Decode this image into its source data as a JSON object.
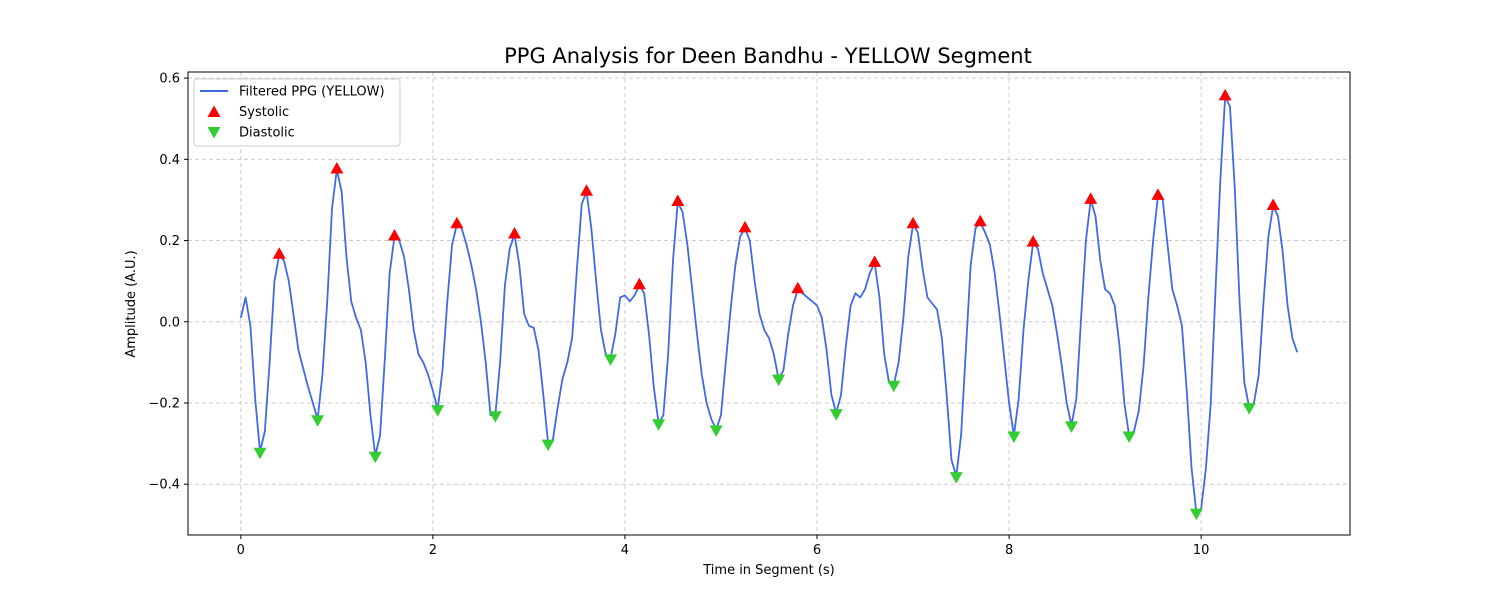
{
  "chart_data": {
    "type": "line",
    "title": "PPG Analysis for Deen Bandhu - YELLOW Segment",
    "xlabel": "Time in Segment (s)",
    "ylabel": "Amplitude (A.U.)",
    "xlim": [
      -0.55,
      11.55
    ],
    "ylim": [
      -0.525,
      0.615
    ],
    "xticks": [
      0,
      2,
      4,
      6,
      8,
      10
    ],
    "yticks": [
      -0.4,
      -0.2,
      0.0,
      0.2,
      0.4,
      0.6
    ],
    "xtick_labels": [
      "0",
      "2",
      "4",
      "6",
      "8",
      "10"
    ],
    "ytick_labels": [
      "−0.4",
      "−0.2",
      "0.0",
      "0.2",
      "0.4",
      "0.6"
    ],
    "grid": true,
    "legend_position": "upper-left",
    "series": [
      {
        "name": "Filtered PPG (YELLOW)",
        "kind": "line",
        "color": "#4169e1",
        "points": [
          [
            0.0,
            0.01
          ],
          [
            0.05,
            0.06
          ],
          [
            0.1,
            -0.01
          ],
          [
            0.15,
            -0.19
          ],
          [
            0.2,
            -0.32
          ],
          [
            0.25,
            -0.27
          ],
          [
            0.3,
            -0.1
          ],
          [
            0.35,
            0.1
          ],
          [
            0.4,
            0.165
          ],
          [
            0.45,
            0.15
          ],
          [
            0.5,
            0.1
          ],
          [
            0.6,
            -0.07
          ],
          [
            0.7,
            -0.16
          ],
          [
            0.8,
            -0.24
          ],
          [
            0.85,
            -0.13
          ],
          [
            0.9,
            0.05
          ],
          [
            0.95,
            0.28
          ],
          [
            1.0,
            0.375
          ],
          [
            1.05,
            0.32
          ],
          [
            1.1,
            0.16
          ],
          [
            1.15,
            0.05
          ],
          [
            1.2,
            0.01
          ],
          [
            1.25,
            -0.02
          ],
          [
            1.3,
            -0.1
          ],
          [
            1.35,
            -0.23
          ],
          [
            1.4,
            -0.33
          ],
          [
            1.45,
            -0.28
          ],
          [
            1.5,
            -0.09
          ],
          [
            1.55,
            0.12
          ],
          [
            1.6,
            0.21
          ],
          [
            1.65,
            0.2
          ],
          [
            1.7,
            0.16
          ],
          [
            1.75,
            0.08
          ],
          [
            1.8,
            -0.02
          ],
          [
            1.85,
            -0.08
          ],
          [
            1.9,
            -0.1
          ],
          [
            1.95,
            -0.13
          ],
          [
            2.0,
            -0.17
          ],
          [
            2.05,
            -0.215
          ],
          [
            2.1,
            -0.12
          ],
          [
            2.15,
            0.05
          ],
          [
            2.2,
            0.19
          ],
          [
            2.25,
            0.24
          ],
          [
            2.3,
            0.23
          ],
          [
            2.35,
            0.19
          ],
          [
            2.4,
            0.14
          ],
          [
            2.45,
            0.08
          ],
          [
            2.5,
            0.0
          ],
          [
            2.55,
            -0.1
          ],
          [
            2.6,
            -0.23
          ],
          [
            2.65,
            -0.23
          ],
          [
            2.7,
            -0.1
          ],
          [
            2.75,
            0.09
          ],
          [
            2.8,
            0.18
          ],
          [
            2.85,
            0.215
          ],
          [
            2.9,
            0.14
          ],
          [
            2.95,
            0.02
          ],
          [
            3.0,
            -0.01
          ],
          [
            3.05,
            -0.015
          ],
          [
            3.1,
            -0.07
          ],
          [
            3.15,
            -0.18
          ],
          [
            3.2,
            -0.3
          ],
          [
            3.25,
            -0.29
          ],
          [
            3.3,
            -0.21
          ],
          [
            3.35,
            -0.14
          ],
          [
            3.4,
            -0.1
          ],
          [
            3.45,
            -0.04
          ],
          [
            3.5,
            0.13
          ],
          [
            3.55,
            0.29
          ],
          [
            3.6,
            0.32
          ],
          [
            3.65,
            0.23
          ],
          [
            3.7,
            0.1
          ],
          [
            3.75,
            -0.02
          ],
          [
            3.8,
            -0.08
          ],
          [
            3.85,
            -0.09
          ],
          [
            3.9,
            -0.03
          ],
          [
            3.95,
            0.06
          ],
          [
            4.0,
            0.065
          ],
          [
            4.05,
            0.05
          ],
          [
            4.1,
            0.065
          ],
          [
            4.15,
            0.09
          ],
          [
            4.2,
            0.07
          ],
          [
            4.25,
            -0.03
          ],
          [
            4.3,
            -0.16
          ],
          [
            4.35,
            -0.25
          ],
          [
            4.4,
            -0.23
          ],
          [
            4.45,
            -0.08
          ],
          [
            4.5,
            0.15
          ],
          [
            4.55,
            0.295
          ],
          [
            4.6,
            0.27
          ],
          [
            4.65,
            0.19
          ],
          [
            4.7,
            0.08
          ],
          [
            4.75,
            -0.03
          ],
          [
            4.8,
            -0.13
          ],
          [
            4.85,
            -0.2
          ],
          [
            4.9,
            -0.24
          ],
          [
            4.95,
            -0.265
          ],
          [
            5.0,
            -0.23
          ],
          [
            5.05,
            -0.1
          ],
          [
            5.1,
            0.03
          ],
          [
            5.15,
            0.14
          ],
          [
            5.2,
            0.21
          ],
          [
            5.25,
            0.23
          ],
          [
            5.3,
            0.2
          ],
          [
            5.35,
            0.1
          ],
          [
            5.4,
            0.02
          ],
          [
            5.45,
            -0.02
          ],
          [
            5.5,
            -0.04
          ],
          [
            5.55,
            -0.08
          ],
          [
            5.6,
            -0.14
          ],
          [
            5.65,
            -0.12
          ],
          [
            5.7,
            -0.03
          ],
          [
            5.75,
            0.04
          ],
          [
            5.8,
            0.08
          ],
          [
            5.85,
            0.07
          ],
          [
            5.9,
            0.06
          ],
          [
            5.95,
            0.05
          ],
          [
            6.0,
            0.04
          ],
          [
            6.05,
            0.01
          ],
          [
            6.1,
            -0.07
          ],
          [
            6.15,
            -0.18
          ],
          [
            6.2,
            -0.225
          ],
          [
            6.25,
            -0.18
          ],
          [
            6.3,
            -0.06
          ],
          [
            6.35,
            0.04
          ],
          [
            6.4,
            0.07
          ],
          [
            6.45,
            0.06
          ],
          [
            6.5,
            0.08
          ],
          [
            6.55,
            0.12
          ],
          [
            6.6,
            0.145
          ],
          [
            6.65,
            0.06
          ],
          [
            6.7,
            -0.08
          ],
          [
            6.75,
            -0.15
          ],
          [
            6.8,
            -0.155
          ],
          [
            6.85,
            -0.1
          ],
          [
            6.9,
            0.01
          ],
          [
            6.95,
            0.16
          ],
          [
            7.0,
            0.24
          ],
          [
            7.05,
            0.22
          ],
          [
            7.1,
            0.13
          ],
          [
            7.15,
            0.06
          ],
          [
            7.2,
            0.045
          ],
          [
            7.25,
            0.03
          ],
          [
            7.3,
            -0.04
          ],
          [
            7.35,
            -0.18
          ],
          [
            7.4,
            -0.34
          ],
          [
            7.45,
            -0.38
          ],
          [
            7.5,
            -0.28
          ],
          [
            7.55,
            -0.07
          ],
          [
            7.6,
            0.14
          ],
          [
            7.65,
            0.23
          ],
          [
            7.7,
            0.245
          ],
          [
            7.75,
            0.22
          ],
          [
            7.8,
            0.19
          ],
          [
            7.85,
            0.12
          ],
          [
            7.9,
            0.02
          ],
          [
            7.95,
            -0.09
          ],
          [
            8.0,
            -0.2
          ],
          [
            8.05,
            -0.28
          ],
          [
            8.1,
            -0.19
          ],
          [
            8.15,
            -0.02
          ],
          [
            8.2,
            0.1
          ],
          [
            8.25,
            0.195
          ],
          [
            8.3,
            0.18
          ],
          [
            8.35,
            0.12
          ],
          [
            8.4,
            0.08
          ],
          [
            8.45,
            0.04
          ],
          [
            8.5,
            -0.03
          ],
          [
            8.55,
            -0.11
          ],
          [
            8.6,
            -0.2
          ],
          [
            8.65,
            -0.255
          ],
          [
            8.7,
            -0.19
          ],
          [
            8.75,
            0.01
          ],
          [
            8.8,
            0.2
          ],
          [
            8.85,
            0.3
          ],
          [
            8.9,
            0.26
          ],
          [
            8.95,
            0.15
          ],
          [
            9.0,
            0.08
          ],
          [
            9.05,
            0.07
          ],
          [
            9.1,
            0.04
          ],
          [
            9.15,
            -0.06
          ],
          [
            9.2,
            -0.2
          ],
          [
            9.25,
            -0.28
          ],
          [
            9.3,
            -0.27
          ],
          [
            9.35,
            -0.22
          ],
          [
            9.4,
            -0.11
          ],
          [
            9.45,
            0.06
          ],
          [
            9.5,
            0.2
          ],
          [
            9.55,
            0.31
          ],
          [
            9.6,
            0.3
          ],
          [
            9.65,
            0.19
          ],
          [
            9.7,
            0.08
          ],
          [
            9.75,
            0.04
          ],
          [
            9.8,
            -0.01
          ],
          [
            9.85,
            -0.17
          ],
          [
            9.9,
            -0.36
          ],
          [
            9.95,
            -0.47
          ],
          [
            10.0,
            -0.46
          ],
          [
            10.05,
            -0.36
          ],
          [
            10.1,
            -0.2
          ],
          [
            10.15,
            0.08
          ],
          [
            10.2,
            0.35
          ],
          [
            10.25,
            0.555
          ],
          [
            10.3,
            0.53
          ],
          [
            10.35,
            0.33
          ],
          [
            10.4,
            0.05
          ],
          [
            10.45,
            -0.15
          ],
          [
            10.5,
            -0.21
          ],
          [
            10.55,
            -0.2
          ],
          [
            10.6,
            -0.13
          ],
          [
            10.65,
            0.05
          ],
          [
            10.7,
            0.21
          ],
          [
            10.75,
            0.285
          ],
          [
            10.8,
            0.26
          ],
          [
            10.85,
            0.17
          ],
          [
            10.9,
            0.04
          ],
          [
            10.95,
            -0.04
          ],
          [
            11.0,
            -0.075
          ]
        ]
      },
      {
        "name": "Systolic",
        "kind": "scatter",
        "marker": "triangle-up",
        "color": "#ff0000",
        "points": [
          [
            0.4,
            0.165
          ],
          [
            1.0,
            0.375
          ],
          [
            1.6,
            0.21
          ],
          [
            2.25,
            0.24
          ],
          [
            2.85,
            0.215
          ],
          [
            3.6,
            0.32
          ],
          [
            4.15,
            0.09
          ],
          [
            4.55,
            0.295
          ],
          [
            5.25,
            0.23
          ],
          [
            5.8,
            0.08
          ],
          [
            6.6,
            0.145
          ],
          [
            7.0,
            0.24
          ],
          [
            7.7,
            0.245
          ],
          [
            8.25,
            0.195
          ],
          [
            8.85,
            0.3
          ],
          [
            9.55,
            0.31
          ],
          [
            10.25,
            0.555
          ],
          [
            10.75,
            0.285
          ]
        ]
      },
      {
        "name": "Diastolic",
        "kind": "scatter",
        "marker": "triangle-down",
        "color": "#32cd32",
        "points": [
          [
            0.2,
            -0.32
          ],
          [
            0.8,
            -0.24
          ],
          [
            1.4,
            -0.33
          ],
          [
            2.05,
            -0.215
          ],
          [
            2.65,
            -0.23
          ],
          [
            3.2,
            -0.3
          ],
          [
            3.85,
            -0.09
          ],
          [
            4.35,
            -0.25
          ],
          [
            4.95,
            -0.265
          ],
          [
            5.6,
            -0.14
          ],
          [
            6.2,
            -0.225
          ],
          [
            6.8,
            -0.155
          ],
          [
            7.45,
            -0.38
          ],
          [
            8.05,
            -0.28
          ],
          [
            8.65,
            -0.255
          ],
          [
            9.25,
            -0.28
          ],
          [
            9.95,
            -0.47
          ],
          [
            10.5,
            -0.21
          ]
        ]
      }
    ]
  }
}
